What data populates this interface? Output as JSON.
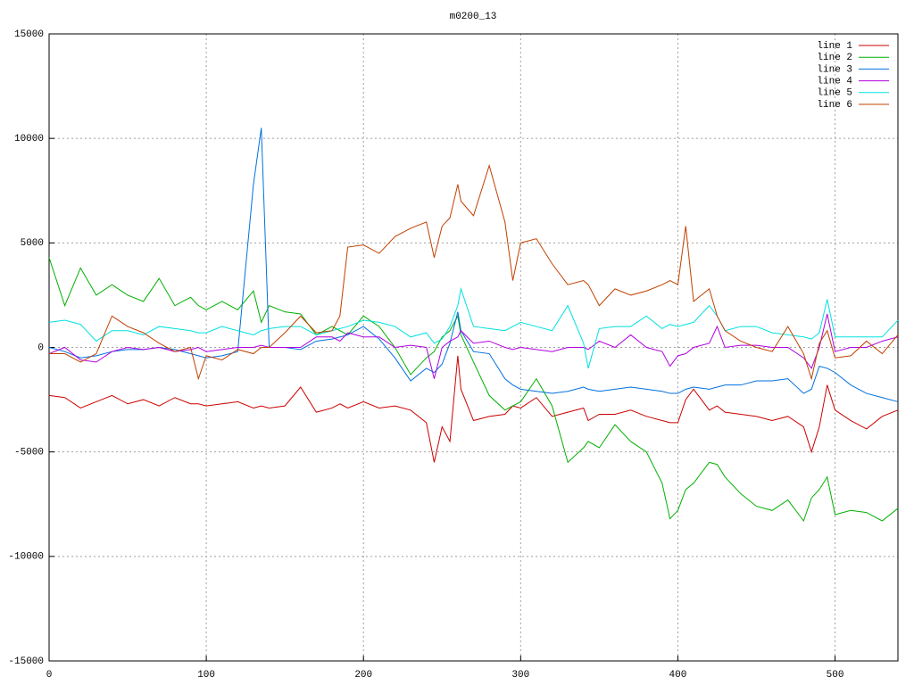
{
  "chart_data": {
    "type": "line",
    "title": "m0200_13",
    "x": [
      0,
      10,
      20,
      30,
      40,
      50,
      60,
      70,
      80,
      90,
      95,
      100,
      110,
      120,
      130,
      135,
      140,
      150,
      160,
      170,
      180,
      185,
      190,
      200,
      210,
      220,
      230,
      240,
      245,
      250,
      255,
      260,
      262,
      270,
      280,
      290,
      295,
      300,
      310,
      320,
      330,
      340,
      343,
      350,
      360,
      370,
      380,
      390,
      395,
      400,
      405,
      410,
      420,
      425,
      430,
      440,
      450,
      460,
      470,
      480,
      485,
      490,
      495,
      500,
      510,
      520,
      530,
      540
    ],
    "series": [
      {
        "name": "line 1",
        "color": "#cc0000",
        "values": [
          -2300,
          -2400,
          -2900,
          -2600,
          -2300,
          -2700,
          -2500,
          -2800,
          -2400,
          -2700,
          -2700,
          -2800,
          -2700,
          -2600,
          -2900,
          -2800,
          -2900,
          -2800,
          -1900,
          -3100,
          -2900,
          -2700,
          -2900,
          -2600,
          -2900,
          -2800,
          -3000,
          -3600,
          -5500,
          -3800,
          -4500,
          -400,
          -2000,
          -3500,
          -3300,
          -3200,
          -2800,
          -2900,
          -2400,
          -3300,
          -3100,
          -2900,
          -3500,
          -3200,
          -3200,
          -3000,
          -3300,
          -3500,
          -3600,
          -3600,
          -2500,
          -2000,
          -3000,
          -2800,
          -3100,
          -3200,
          -3300,
          -3500,
          -3300,
          -3800,
          -5000,
          -3800,
          -1800,
          -3000,
          -3500,
          -3900,
          -3300,
          -3000
        ]
      },
      {
        "name": "line 2",
        "color": "#00b000",
        "values": [
          4300,
          2000,
          3800,
          2500,
          3000,
          2500,
          2200,
          3300,
          2000,
          2400,
          2000,
          1800,
          2200,
          1800,
          2700,
          1200,
          2000,
          1700,
          1600,
          600,
          1000,
          800,
          600,
          1500,
          1000,
          0,
          -1300,
          -500,
          -200,
          500,
          800,
          1500,
          600,
          -700,
          -2300,
          -3000,
          -2800,
          -2600,
          -1500,
          -2800,
          -5500,
          -4800,
          -4500,
          -4800,
          -3700,
          -4500,
          -5000,
          -6500,
          -8200,
          -7800,
          -6800,
          -6500,
          -5500,
          -5600,
          -6200,
          -7000,
          -7600,
          -7800,
          -7300,
          -8300,
          -7200,
          -6800,
          -6200,
          -8000,
          -7800,
          -7900,
          -8300,
          -7700
        ]
      },
      {
        "name": "line 3",
        "color": "#0070e0",
        "values": [
          0,
          -200,
          -500,
          -400,
          -200,
          -100,
          -100,
          0,
          -100,
          -300,
          -400,
          -500,
          -400,
          -200,
          7800,
          10500,
          0,
          0,
          -100,
          300,
          400,
          500,
          600,
          1000,
          400,
          -500,
          -1600,
          -1000,
          -1200,
          -800,
          200,
          1700,
          800,
          -200,
          -300,
          -1500,
          -1800,
          -2000,
          -2100,
          -2200,
          -2100,
          -1900,
          -2000,
          -2100,
          -2000,
          -1900,
          -2000,
          -2100,
          -2200,
          -2200,
          -2000,
          -1900,
          -2000,
          -1900,
          -1800,
          -1800,
          -1600,
          -1600,
          -1500,
          -2200,
          -2000,
          -900,
          -1000,
          -1200,
          -1800,
          -2200,
          -2400,
          -2600
        ]
      },
      {
        "name": "line 4",
        "color": "#b000e0",
        "values": [
          -300,
          0,
          -600,
          -700,
          -200,
          0,
          -100,
          0,
          -200,
          -100,
          0,
          -200,
          -100,
          0,
          0,
          100,
          0,
          0,
          0,
          500,
          500,
          300,
          700,
          500,
          500,
          0,
          100,
          0,
          -1500,
          0,
          300,
          500,
          800,
          200,
          300,
          0,
          -100,
          0,
          -100,
          -200,
          0,
          0,
          -100,
          300,
          0,
          600,
          0,
          -200,
          -900,
          -400,
          -300,
          0,
          200,
          1000,
          0,
          100,
          100,
          0,
          0,
          -500,
          -1000,
          0,
          1600,
          -200,
          0,
          0,
          300,
          500
        ]
      },
      {
        "name": "line 5",
        "color": "#00e0e0",
        "values": [
          1200,
          1300,
          1100,
          300,
          800,
          800,
          600,
          1000,
          900,
          800,
          700,
          700,
          1000,
          800,
          600,
          800,
          900,
          1000,
          1000,
          600,
          800,
          900,
          1000,
          1300,
          1200,
          1000,
          500,
          700,
          200,
          400,
          1000,
          2000,
          2800,
          1000,
          900,
          800,
          1000,
          1200,
          1000,
          800,
          2000,
          200,
          -1000,
          900,
          1000,
          1000,
          1500,
          900,
          1100,
          1000,
          1100,
          1200,
          2000,
          1500,
          800,
          1000,
          1000,
          700,
          600,
          500,
          400,
          700,
          2300,
          500,
          500,
          500,
          500,
          1300
        ]
      },
      {
        "name": "line 6",
        "color": "#c04000",
        "values": [
          -300,
          -300,
          -700,
          -300,
          1500,
          1000,
          700,
          200,
          -200,
          0,
          -1500,
          -400,
          -600,
          -100,
          -300,
          0,
          0,
          700,
          1500,
          700,
          800,
          1500,
          4800,
          4900,
          4500,
          5300,
          5700,
          6000,
          4300,
          5800,
          6200,
          7800,
          7000,
          6300,
          8700,
          6000,
          3200,
          5000,
          5200,
          4000,
          3000,
          3200,
          3000,
          2000,
          2800,
          2500,
          2700,
          3000,
          3200,
          3000,
          5800,
          2200,
          2800,
          1500,
          800,
          300,
          0,
          -200,
          1000,
          -300,
          -1500,
          200,
          800,
          -500,
          -400,
          300,
          -300,
          600
        ]
      }
    ],
    "xlim": [
      0,
      540
    ],
    "ylim": [
      -15000,
      15000
    ],
    "xticks": [
      0,
      100,
      200,
      300,
      400,
      500
    ],
    "yticks": [
      -15000,
      -10000,
      -5000,
      0,
      5000,
      10000,
      15000
    ],
    "grid": true,
    "legend": "top right"
  }
}
